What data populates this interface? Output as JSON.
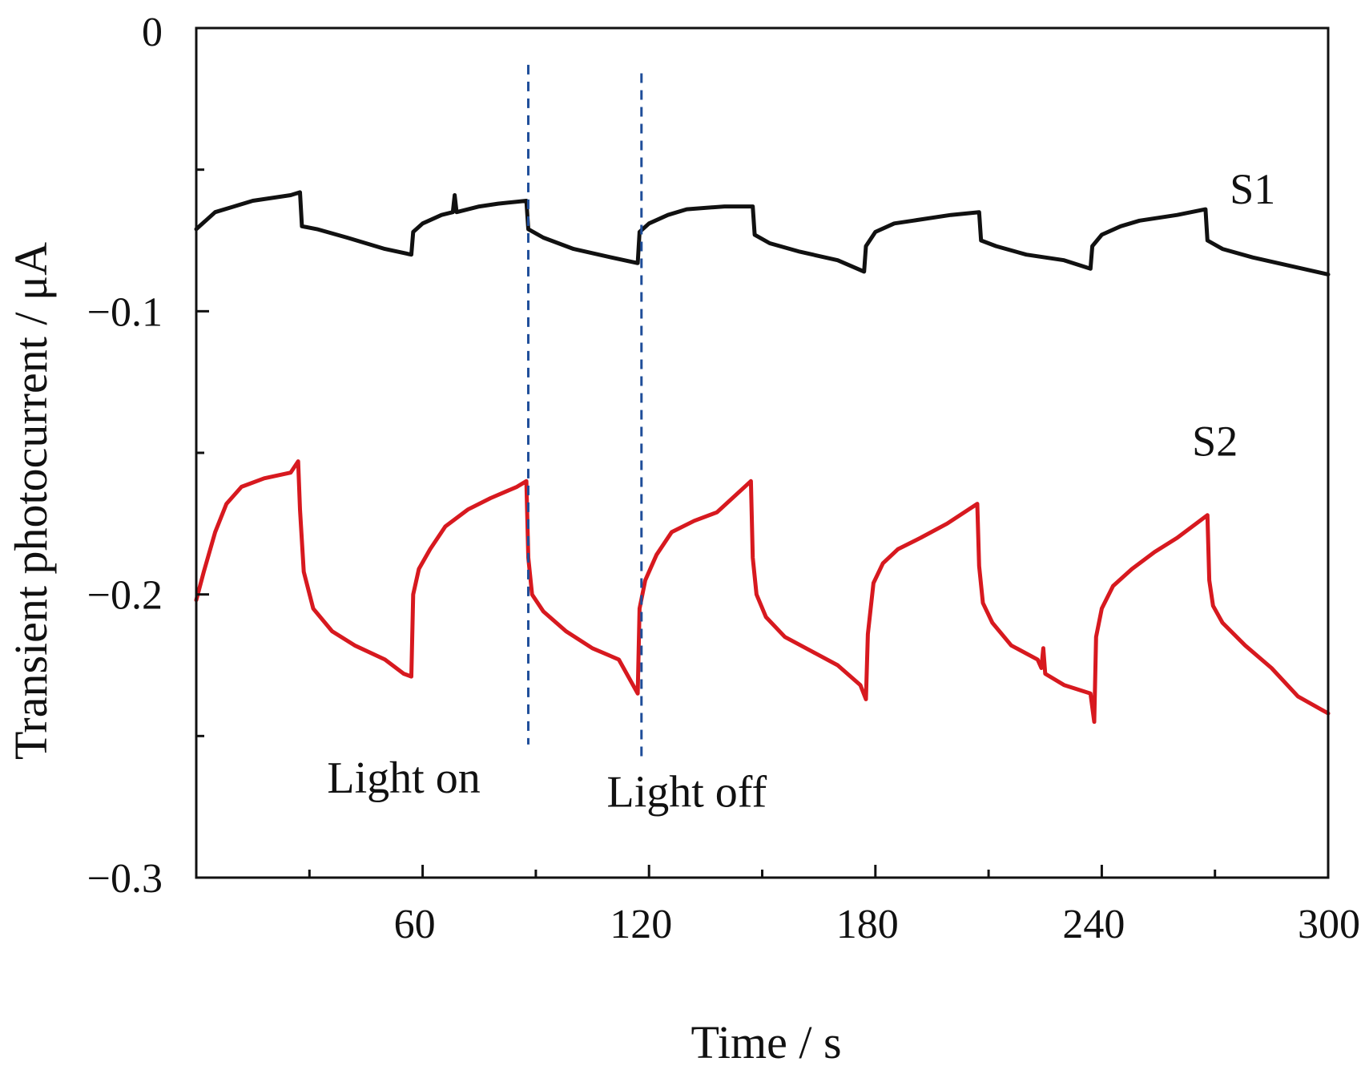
{
  "chart_data": {
    "type": "line",
    "title": "",
    "xlabel": "Time / s",
    "ylabel": "Transient photocurrent / μA",
    "xlim": [
      0,
      300
    ],
    "ylim": [
      -0.3,
      0
    ],
    "x_ticks": [
      60,
      120,
      180,
      240,
      300
    ],
    "x_tick_labels": [
      "60",
      "120",
      "180",
      "240",
      "300"
    ],
    "x_minor_ticks": [
      30,
      90,
      150,
      210,
      270
    ],
    "y_ticks": [
      0,
      -0.1,
      -0.2,
      -0.3
    ],
    "y_tick_labels": [
      "0",
      "−0.1",
      "−0.2",
      "−0.3"
    ],
    "y_minor_ticks": [
      -0.05,
      -0.15,
      -0.25
    ],
    "grid": false,
    "legend": "none",
    "colors": {
      "S1": "#111111",
      "S2": "#d7191f",
      "markers": "#1f4e9a"
    },
    "series": [
      {
        "name": "S1",
        "color": "#111111",
        "x": [
          0,
          5,
          10,
          15,
          20,
          25,
          27.5,
          28,
          32,
          40,
          50,
          57,
          57.5,
          60,
          65,
          68,
          68.5,
          69,
          75,
          80,
          87.5,
          88,
          92,
          100,
          110,
          117,
          117.5,
          120,
          125,
          130,
          140,
          147.5,
          148,
          152,
          160,
          170,
          177,
          177.5,
          180,
          185,
          190,
          200,
          207.5,
          208,
          212,
          220,
          230,
          237,
          237.5,
          240,
          245,
          250,
          260,
          267.5,
          268,
          272,
          280,
          290,
          300
        ],
        "y": [
          -0.071,
          -0.065,
          -0.063,
          -0.061,
          -0.06,
          -0.059,
          -0.058,
          -0.07,
          -0.071,
          -0.074,
          -0.078,
          -0.08,
          -0.072,
          -0.069,
          -0.066,
          -0.065,
          -0.059,
          -0.065,
          -0.063,
          -0.062,
          -0.061,
          -0.071,
          -0.074,
          -0.078,
          -0.081,
          -0.083,
          -0.072,
          -0.069,
          -0.066,
          -0.064,
          -0.063,
          -0.063,
          -0.073,
          -0.076,
          -0.079,
          -0.082,
          -0.086,
          -0.077,
          -0.072,
          -0.069,
          -0.068,
          -0.066,
          -0.065,
          -0.075,
          -0.077,
          -0.08,
          -0.082,
          -0.085,
          -0.077,
          -0.073,
          -0.07,
          -0.068,
          -0.066,
          -0.064,
          -0.075,
          -0.078,
          -0.081,
          -0.084,
          -0.087
        ]
      },
      {
        "name": "S2",
        "color": "#d7191f",
        "x": [
          0,
          2,
          5,
          8,
          12,
          18,
          25,
          27,
          27.5,
          28.5,
          31,
          36,
          42,
          50,
          55,
          57,
          57.5,
          59,
          62,
          66,
          72,
          78,
          85,
          87.5,
          88,
          89,
          92,
          98,
          105,
          112,
          117,
          117.5,
          119,
          122,
          126,
          132,
          138,
          147,
          147.5,
          148.5,
          151,
          156,
          163,
          170,
          176,
          177.5,
          178,
          179.5,
          182,
          186,
          192,
          199,
          207,
          207.5,
          208.5,
          211,
          216,
          223,
          224,
          224.5,
          225,
          230,
          237,
          238,
          238.5,
          240,
          243,
          248,
          254,
          260,
          268,
          268.5,
          269.5,
          272,
          278,
          285,
          292,
          300
        ],
        "y": [
          -0.202,
          -0.192,
          -0.178,
          -0.168,
          -0.162,
          -0.159,
          -0.157,
          -0.153,
          -0.17,
          -0.192,
          -0.205,
          -0.213,
          -0.218,
          -0.223,
          -0.228,
          -0.229,
          -0.2,
          -0.191,
          -0.184,
          -0.176,
          -0.17,
          -0.166,
          -0.162,
          -0.16,
          -0.187,
          -0.2,
          -0.206,
          -0.213,
          -0.219,
          -0.223,
          -0.235,
          -0.205,
          -0.195,
          -0.186,
          -0.178,
          -0.174,
          -0.171,
          -0.16,
          -0.187,
          -0.2,
          -0.208,
          -0.215,
          -0.22,
          -0.225,
          -0.232,
          -0.237,
          -0.214,
          -0.196,
          -0.189,
          -0.184,
          -0.18,
          -0.175,
          -0.168,
          -0.19,
          -0.203,
          -0.21,
          -0.218,
          -0.223,
          -0.226,
          -0.219,
          -0.228,
          -0.232,
          -0.235,
          -0.245,
          -0.215,
          -0.205,
          -0.197,
          -0.191,
          -0.185,
          -0.18,
          -0.172,
          -0.195,
          -0.204,
          -0.21,
          -0.218,
          -0.226,
          -0.236,
          -0.242
        ]
      }
    ],
    "annotations": [
      {
        "text": "S1",
        "x": 280,
        "y": -0.062
      },
      {
        "text": "S2",
        "x": 270,
        "y": -0.151
      },
      {
        "text": "Light on",
        "x": 55,
        "y": -0.27
      },
      {
        "text": "Light off",
        "x": 130,
        "y": -0.275
      }
    ],
    "vlines": [
      {
        "x": 88,
        "y_from": -0.013,
        "y_to": -0.253
      },
      {
        "x": 118,
        "y_from": -0.016,
        "y_to": -0.258
      }
    ]
  }
}
